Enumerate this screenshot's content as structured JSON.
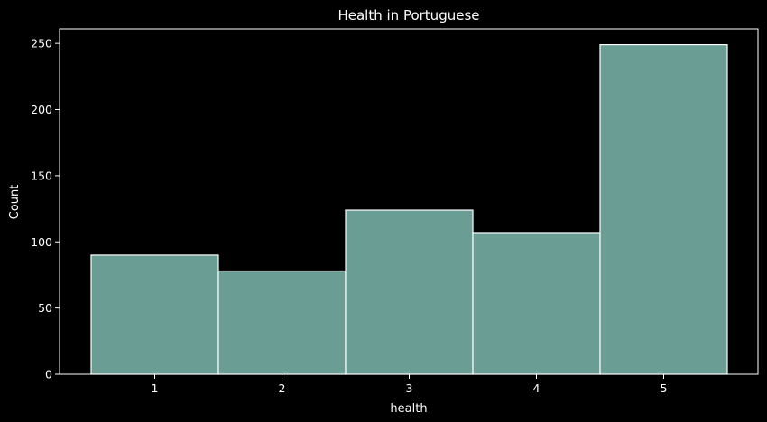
{
  "chart_data": {
    "type": "bar",
    "title": "Health in Portuguese",
    "xlabel": "health",
    "ylabel": "Count",
    "categories": [
      "1",
      "2",
      "3",
      "4",
      "5"
    ],
    "values": [
      90,
      78,
      124,
      107,
      249
    ],
    "ylim": [
      0,
      261
    ],
    "yticks": [
      0,
      50,
      100,
      150,
      200,
      250
    ],
    "grid": false,
    "colors": {
      "background": "#000000",
      "bar_fill": "#6a9d94",
      "bar_edge": "#ffffff",
      "axis": "#ffffff",
      "text": "#ffffff"
    }
  }
}
